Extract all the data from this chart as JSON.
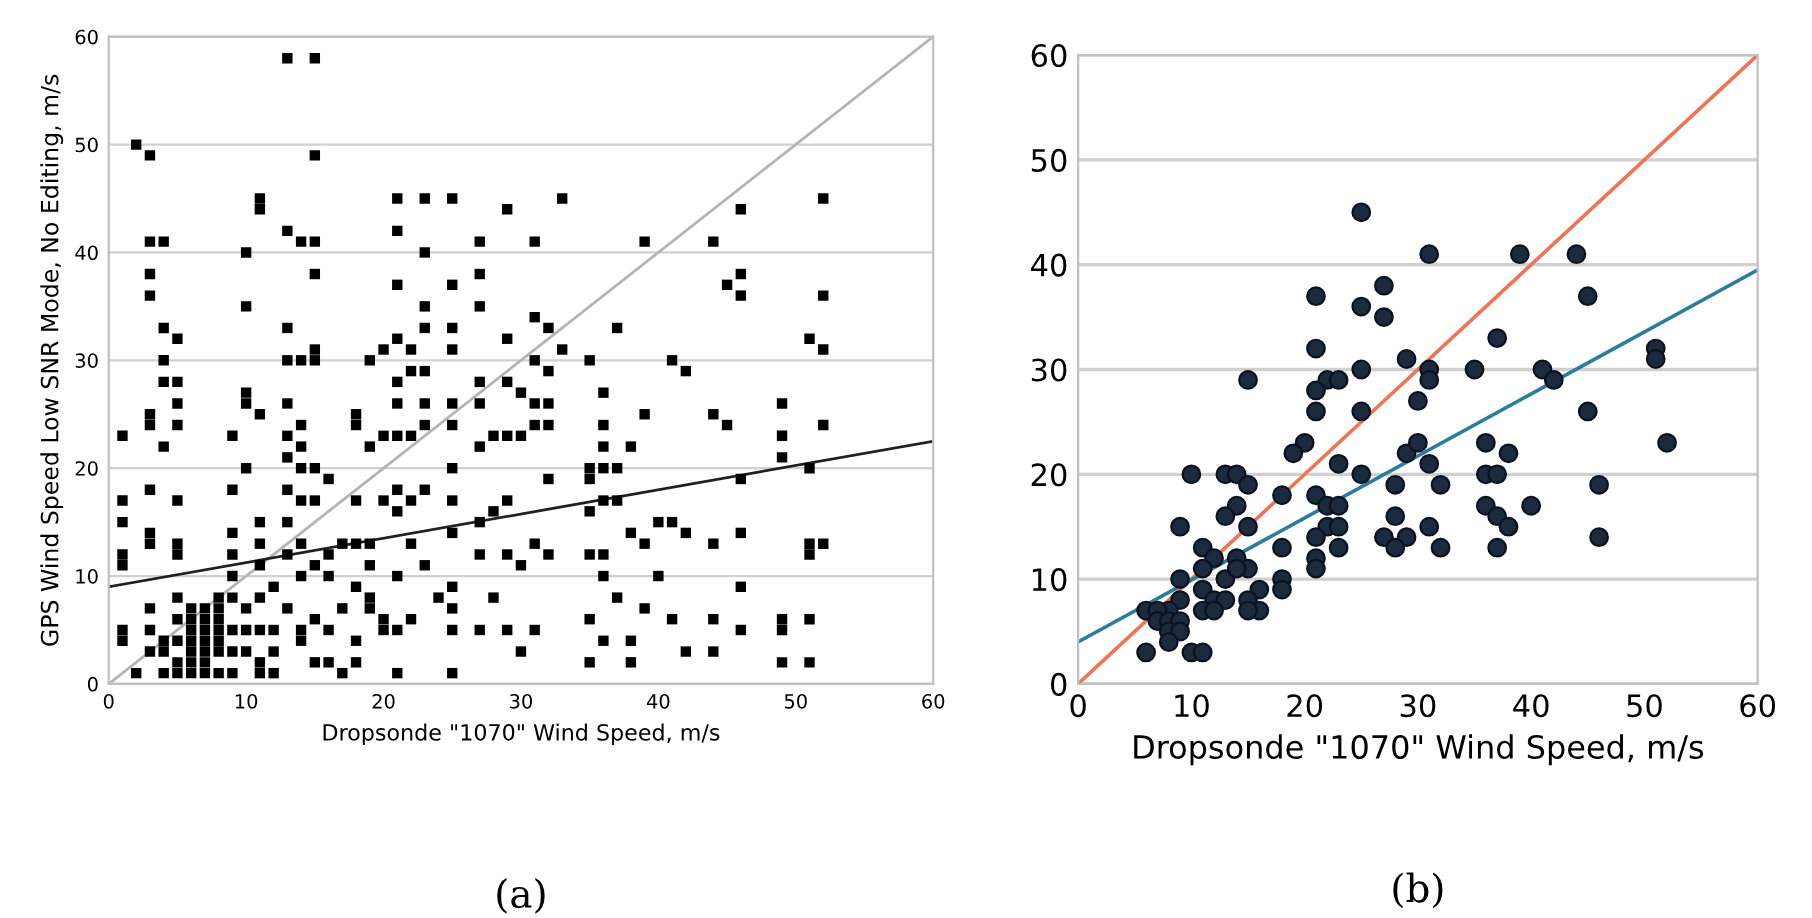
{
  "chart_data": [
    {
      "type": "scatter",
      "xlabel": "Dropsonde \"1070\" Wind Speed, m/s",
      "ylabel": "GPS Wind Speed Low SNR Mode, No Editing, m/s",
      "annotations": [
        "(a)"
      ],
      "xlim": [
        0,
        60
      ],
      "ylim": [
        0,
        60
      ],
      "xticks": [
        0,
        10,
        20,
        30,
        40,
        50,
        60
      ],
      "yticks": [
        0,
        10,
        20,
        30,
        40,
        50,
        60
      ],
      "grid": "y",
      "series": [
        {
          "marker": "square",
          "color": "#000000",
          "x": [
            1,
            1,
            1,
            1,
            1,
            1,
            1,
            2,
            2,
            3,
            3,
            3,
            3,
            3,
            3,
            3,
            3,
            3,
            3,
            3,
            3,
            4,
            4,
            4,
            4,
            4,
            4,
            4,
            4,
            5,
            5,
            5,
            5,
            5,
            5,
            5,
            5,
            5,
            5,
            5,
            5,
            6,
            6,
            6,
            6,
            6,
            6,
            6,
            7,
            7,
            7,
            7,
            7,
            7,
            7,
            8,
            8,
            8,
            8,
            8,
            8,
            8,
            9,
            9,
            9,
            9,
            9,
            9,
            9,
            9,
            9,
            10,
            10,
            10,
            10,
            10,
            10,
            10,
            10,
            11,
            11,
            11,
            11,
            11,
            11,
            11,
            11,
            11,
            11,
            12,
            12,
            12,
            12,
            13,
            13,
            13,
            13,
            13,
            13,
            13,
            13,
            13,
            13,
            13,
            14,
            14,
            14,
            14,
            14,
            14,
            14,
            14,
            14,
            14,
            15,
            15,
            15,
            15,
            15,
            15,
            15,
            15,
            15,
            15,
            15,
            16,
            16,
            16,
            16,
            16,
            17,
            17,
            17,
            18,
            18,
            18,
            18,
            18,
            18,
            18,
            19,
            19,
            19,
            19,
            19,
            19,
            20,
            20,
            20,
            20,
            20,
            21,
            21,
            21,
            21,
            21,
            21,
            21,
            21,
            21,
            21,
            21,
            21,
            22,
            22,
            22,
            22,
            22,
            22,
            23,
            23,
            23,
            23,
            23,
            23,
            23,
            23,
            23,
            24,
            25,
            25,
            25,
            25,
            25,
            25,
            25,
            25,
            25,
            25,
            25,
            25,
            25,
            27,
            27,
            27,
            27,
            27,
            27,
            27,
            27,
            27,
            28,
            28,
            28,
            29,
            29,
            29,
            29,
            29,
            29,
            29,
            30,
            30,
            30,
            30,
            31,
            31,
            31,
            31,
            31,
            31,
            31,
            32,
            32,
            32,
            32,
            32,
            32,
            33,
            33,
            35,
            35,
            35,
            35,
            35,
            35,
            35,
            36,
            36,
            36,
            36,
            36,
            36,
            36,
            36,
            37,
            37,
            37,
            37,
            38,
            38,
            38,
            38,
            39,
            39,
            39,
            39,
            40,
            40,
            41,
            41,
            41,
            42,
            42,
            42,
            44,
            44,
            44,
            44,
            44,
            45,
            45,
            46,
            46,
            46,
            46,
            46,
            46,
            46,
            49,
            49,
            49,
            49,
            49,
            49,
            51,
            51,
            51,
            51,
            51,
            51,
            52,
            52,
            52,
            52,
            52
          ],
          "values": [
            23,
            17,
            15,
            12,
            11,
            5,
            4,
            50,
            1,
            49,
            41,
            38,
            36,
            25,
            24,
            18,
            14,
            13,
            7,
            5,
            3,
            41,
            33,
            30,
            28,
            22,
            4,
            3,
            1,
            32,
            28,
            26,
            24,
            17,
            13,
            12,
            8,
            6,
            4,
            2,
            1,
            7,
            6,
            5,
            4,
            3,
            2,
            1,
            7,
            6,
            5,
            4,
            3,
            2,
            1,
            8,
            7,
            6,
            5,
            4,
            3,
            1,
            23,
            18,
            14,
            12,
            10,
            8,
            5,
            3,
            1,
            40,
            35,
            27,
            26,
            20,
            7,
            5,
            3,
            45,
            44,
            25,
            15,
            13,
            11,
            8,
            5,
            2,
            1,
            9,
            5,
            3,
            1,
            58,
            42,
            33,
            30,
            26,
            23,
            21,
            18,
            15,
            12,
            7,
            41,
            30,
            24,
            22,
            20,
            17,
            13,
            10,
            5,
            4,
            58,
            49,
            41,
            38,
            31,
            30,
            20,
            17,
            11,
            6,
            2,
            19,
            12,
            10,
            5,
            2,
            13,
            7,
            1,
            25,
            24,
            17,
            13,
            9,
            4,
            2,
            30,
            22,
            13,
            11,
            8,
            7,
            31,
            23,
            17,
            6,
            5,
            45,
            42,
            37,
            32,
            28,
            26,
            23,
            18,
            16,
            10,
            5,
            1,
            31,
            29,
            23,
            17,
            13,
            6,
            45,
            40,
            35,
            33,
            29,
            26,
            24,
            18,
            11,
            8,
            45,
            37,
            33,
            31,
            26,
            24,
            20,
            17,
            14,
            9,
            7,
            5,
            1,
            41,
            38,
            35,
            28,
            26,
            22,
            15,
            12,
            5,
            23,
            16,
            8,
            44,
            32,
            28,
            23,
            17,
            12,
            5,
            27,
            23,
            11,
            3,
            41,
            34,
            30,
            26,
            24,
            13,
            5,
            33,
            29,
            26,
            24,
            19,
            12,
            45,
            31,
            30,
            20,
            19,
            16,
            12,
            6,
            2,
            27,
            24,
            22,
            20,
            17,
            12,
            10,
            4,
            33,
            20,
            17,
            8,
            22,
            14,
            4,
            2,
            41,
            25,
            13,
            7,
            15,
            10,
            30,
            15,
            6,
            29,
            14,
            3,
            41,
            25,
            13,
            6,
            3,
            37,
            24,
            44,
            38,
            36,
            19,
            14,
            9,
            5,
            26,
            23,
            21,
            6,
            5,
            2,
            32,
            20,
            13,
            12,
            6,
            2,
            45,
            36,
            31,
            24,
            13
          ]
        },
        {
          "type": "line",
          "color": "#b4b4b4",
          "x": [
            0,
            60
          ],
          "values": [
            0,
            60
          ]
        },
        {
          "type": "line",
          "color": "#202020",
          "x": [
            0,
            60
          ],
          "values": [
            9,
            22.5
          ]
        }
      ]
    },
    {
      "type": "scatter",
      "xlabel": "Dropsonde \"1070\" Wind Speed, m/s",
      "annotations": [
        "(b)"
      ],
      "xlim": [
        0,
        60
      ],
      "ylim": [
        0,
        60
      ],
      "xticks": [
        0,
        10,
        20,
        30,
        40,
        50,
        60
      ],
      "yticks": [
        0,
        10,
        20,
        30,
        40,
        50,
        60
      ],
      "grid": "y",
      "series": [
        {
          "marker": "circle",
          "color": "#1c2a3e",
          "x": [
            25,
            31,
            39,
            44,
            45,
            21,
            27,
            27,
            25,
            37,
            21,
            51,
            51,
            35,
            41,
            42,
            31,
            31,
            25,
            29,
            15,
            22,
            23,
            21,
            30,
            21,
            25,
            45,
            52,
            20,
            19,
            36,
            29,
            30,
            38,
            23,
            31,
            10,
            13,
            14,
            25,
            36,
            37,
            15,
            28,
            32,
            46,
            18,
            21,
            14,
            22,
            23,
            36,
            40,
            13,
            28,
            37,
            38,
            9,
            15,
            22,
            23,
            31,
            27,
            29,
            46,
            21,
            11,
            18,
            23,
            28,
            32,
            37,
            21,
            12,
            14,
            21,
            11,
            15,
            9,
            13,
            14,
            18,
            18,
            16,
            11,
            12,
            13,
            11,
            15,
            16,
            9,
            8,
            6,
            7,
            7,
            8,
            9,
            8,
            9,
            8,
            6,
            10,
            11,
            12,
            15
          ],
          "values": [
            45,
            41,
            41,
            41,
            37,
            37,
            38,
            35,
            36,
            33,
            32,
            32,
            31,
            30,
            30,
            29,
            30,
            29,
            30,
            31,
            29,
            29,
            29,
            28,
            27,
            26,
            26,
            26,
            23,
            23,
            22,
            23,
            22,
            23,
            22,
            21,
            21,
            20,
            20,
            20,
            20,
            20,
            20,
            19,
            19,
            19,
            19,
            18,
            18,
            17,
            17,
            17,
            17,
            17,
            16,
            16,
            16,
            15,
            15,
            15,
            15,
            15,
            15,
            14,
            14,
            14,
            14,
            13,
            13,
            13,
            13,
            13,
            13,
            12,
            12,
            12,
            11,
            11,
            11,
            10,
            10,
            11,
            10,
            9,
            9,
            9,
            8,
            8,
            7,
            8,
            7,
            8,
            7,
            7,
            7,
            6,
            6,
            6,
            5,
            5,
            4,
            3,
            3,
            3,
            7,
            7
          ]
        },
        {
          "type": "line",
          "color": "#f07452",
          "x": [
            0,
            60
          ],
          "values": [
            0,
            60
          ]
        },
        {
          "type": "line",
          "color": "#2b7d9e",
          "x": [
            0,
            60
          ],
          "values": [
            4,
            39.5
          ]
        }
      ]
    }
  ]
}
